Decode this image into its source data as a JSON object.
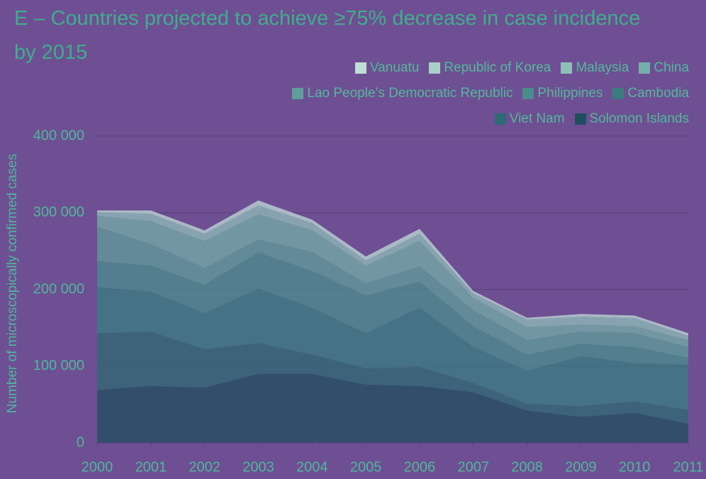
{
  "chart_data": {
    "type": "stacked_area",
    "title": "E – Countries projected to achieve ≥75% decrease in case incidence by 2015",
    "y_label": "Number of microscopically confirmed cases",
    "x": [
      2000,
      2001,
      2002,
      2003,
      2004,
      2005,
      2006,
      2007,
      2008,
      2009,
      2010,
      2011
    ],
    "xlim": [
      2000,
      2011
    ],
    "xticks": [
      2000,
      2001,
      2002,
      2003,
      2004,
      2005,
      2006,
      2007,
      2008,
      2009,
      2010,
      2011
    ],
    "ylim": [
      0,
      400000
    ],
    "yticks": [
      0,
      {
        "value": 100000,
        "label": "100 000"
      },
      {
        "value": 200000,
        "label": "200 000"
      },
      {
        "value": 300000,
        "label": "300 000"
      },
      {
        "value": 400000,
        "label": "400 000"
      }
    ],
    "grid": true,
    "legend": "top-right",
    "series": [
      {
        "name": "Vanuatu",
        "color": "#c0ddd7",
        "values": [
          2000,
          4000,
          4000,
          6000,
          4000,
          5000,
          6000,
          3000,
          2000,
          3000,
          3000,
          3000
        ]
      },
      {
        "name": "Republic of Korea",
        "color": "#a8cfc8",
        "values": [
          1000,
          1000,
          1000,
          1000,
          1000,
          1000,
          1000,
          1000,
          1000,
          1000,
          1000,
          1000
        ]
      },
      {
        "name": "Malaysia",
        "color": "#8fbfb8",
        "values": [
          4000,
          9000,
          9000,
          11000,
          9000,
          6000,
          9000,
          5000,
          9000,
          10000,
          10000,
          5000
        ]
      },
      {
        "name": "China",
        "color": "#76aea8",
        "values": [
          14000,
          30000,
          35000,
          33000,
          28000,
          23000,
          33000,
          16000,
          17000,
          9000,
          9000,
          9000
        ]
      },
      {
        "name": "Lao People’s Democratic Republic",
        "color": "#5f9e9a",
        "values": [
          45000,
          28000,
          22000,
          17000,
          25000,
          16000,
          20000,
          21000,
          19000,
          16000,
          18000,
          14000
        ]
      },
      {
        "name": "Philippines",
        "color": "#4a8d8c",
        "values": [
          34000,
          34000,
          37000,
          47000,
          48000,
          49000,
          34000,
          27000,
          21000,
          16000,
          21000,
          9000
        ]
      },
      {
        "name": "Cambodia",
        "color": "#3a7d80",
        "values": [
          60000,
          52000,
          47000,
          71000,
          61000,
          46000,
          77000,
          47000,
          43000,
          65000,
          50000,
          59000
        ]
      },
      {
        "name": "Viet Nam",
        "color": "#2d6a73",
        "values": [
          74000,
          71000,
          50000,
          40000,
          25000,
          21000,
          25000,
          12000,
          9000,
          14000,
          15000,
          18000
        ]
      },
      {
        "name": "Solomon Islands",
        "color": "#1f4e5f",
        "values": [
          69000,
          74000,
          72000,
          90000,
          90000,
          76000,
          74000,
          66000,
          42000,
          34000,
          39000,
          25000
        ]
      }
    ]
  }
}
